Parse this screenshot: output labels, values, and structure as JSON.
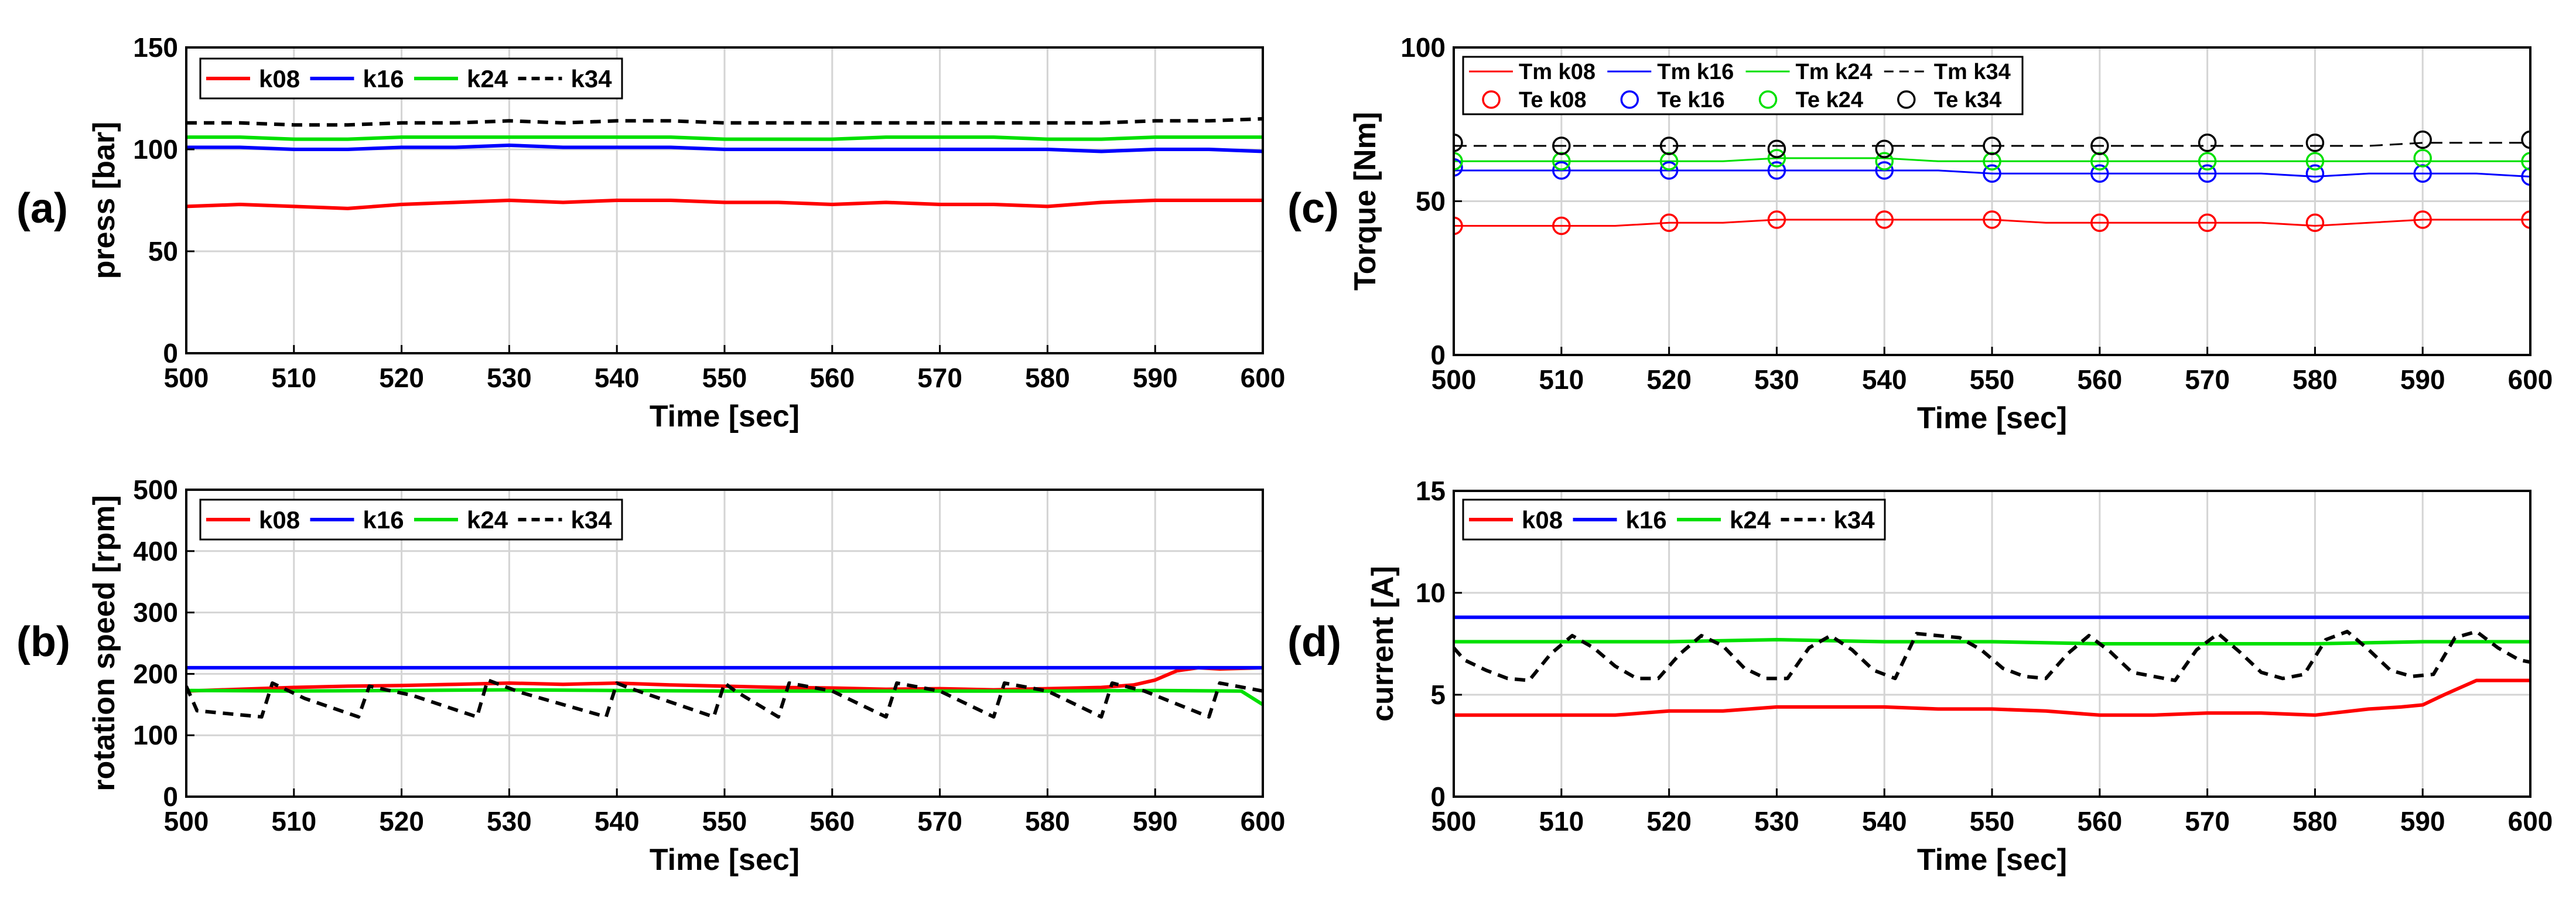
{
  "chart_data": [
    {
      "type": "line",
      "panel_label": "(a)",
      "xlabel": "Time [sec]",
      "ylabel": "press [bar]",
      "xlim": [
        500,
        600
      ],
      "ylim": [
        0,
        150
      ],
      "xticks": [
        "500",
        "510",
        "520",
        "530",
        "540",
        "550",
        "560",
        "570",
        "580",
        "590",
        "600"
      ],
      "yticks": [
        "0",
        "50",
        "100",
        "150"
      ],
      "grid": true,
      "legend_location": "top-left",
      "x": [
        500,
        505,
        510,
        515,
        520,
        525,
        530,
        535,
        540,
        545,
        550,
        555,
        560,
        565,
        570,
        575,
        580,
        585,
        590,
        595,
        600
      ],
      "series": [
        {
          "name": "k08",
          "color": "#ff0000",
          "style": "solid",
          "values": [
            72,
            73,
            72,
            71,
            73,
            74,
            75,
            74,
            75,
            75,
            74,
            74,
            73,
            74,
            73,
            73,
            72,
            74,
            75,
            75,
            75
          ]
        },
        {
          "name": "k16",
          "color": "#0000ff",
          "style": "solid",
          "values": [
            101,
            101,
            100,
            100,
            101,
            101,
            102,
            101,
            101,
            101,
            100,
            100,
            100,
            100,
            100,
            100,
            100,
            99,
            100,
            100,
            99
          ]
        },
        {
          "name": "k24",
          "color": "#00e000",
          "style": "solid",
          "values": [
            106,
            106,
            105,
            105,
            106,
            106,
            106,
            106,
            106,
            106,
            105,
            105,
            105,
            106,
            106,
            106,
            105,
            105,
            106,
            106,
            106
          ]
        },
        {
          "name": "k34",
          "color": "#000000",
          "style": "dashed",
          "values": [
            113,
            113,
            112,
            112,
            113,
            113,
            114,
            113,
            114,
            114,
            113,
            113,
            113,
            113,
            113,
            113,
            113,
            113,
            114,
            114,
            115
          ]
        }
      ]
    },
    {
      "type": "line",
      "panel_label": "(b)",
      "xlabel": "Time [sec]",
      "ylabel": "rotation speed [rpm]",
      "xlim": [
        500,
        600
      ],
      "ylim": [
        0,
        500
      ],
      "xticks": [
        "500",
        "510",
        "520",
        "530",
        "540",
        "550",
        "560",
        "570",
        "580",
        "590",
        "600"
      ],
      "yticks": [
        "0",
        "100",
        "200",
        "300",
        "400",
        "500"
      ],
      "grid": true,
      "legend_location": "top-left",
      "series": [
        {
          "name": "k08",
          "color": "#ff0000",
          "style": "solid",
          "x": [
            500,
            505,
            510,
            515,
            520,
            525,
            530,
            535,
            540,
            545,
            550,
            555,
            560,
            565,
            570,
            575,
            580,
            585,
            588,
            590,
            592,
            594,
            596,
            600
          ],
          "values": [
            172,
            175,
            178,
            180,
            181,
            183,
            185,
            183,
            185,
            182,
            180,
            178,
            177,
            175,
            176,
            174,
            176,
            178,
            182,
            190,
            205,
            210,
            208,
            210
          ]
        },
        {
          "name": "k16",
          "color": "#0000ff",
          "style": "solid",
          "x": [
            500,
            600
          ],
          "values": [
            210,
            210
          ]
        },
        {
          "name": "k24",
          "color": "#00e000",
          "style": "solid",
          "x": [
            500,
            510,
            520,
            530,
            540,
            550,
            560,
            570,
            580,
            590,
            598,
            600
          ],
          "values": [
            173,
            172,
            173,
            174,
            173,
            172,
            172,
            172,
            172,
            173,
            172,
            150
          ]
        },
        {
          "name": "k34",
          "color": "#000000",
          "style": "dashed",
          "x": [
            500,
            501,
            507,
            508,
            511,
            516,
            517,
            521,
            527,
            528,
            531,
            539,
            540,
            541,
            549,
            550,
            551,
            555,
            556,
            560,
            565,
            566,
            570,
            575,
            576,
            580,
            585,
            586,
            589,
            595,
            596,
            600
          ],
          "values": [
            180,
            140,
            130,
            185,
            160,
            130,
            180,
            165,
            130,
            190,
            170,
            130,
            185,
            178,
            130,
            185,
            172,
            130,
            185,
            172,
            130,
            185,
            172,
            130,
            185,
            172,
            130,
            185,
            172,
            130,
            185,
            172
          ]
        }
      ]
    },
    {
      "type": "line",
      "panel_label": "(c)",
      "xlabel": "Time [sec]",
      "ylabel": "Torque [Nm]",
      "xlim": [
        500,
        600
      ],
      "ylim": [
        0,
        100
      ],
      "xticks": [
        "500",
        "510",
        "520",
        "530",
        "540",
        "550",
        "560",
        "570",
        "580",
        "590",
        "600"
      ],
      "yticks": [
        "0",
        "50",
        "100"
      ],
      "grid": true,
      "legend_location": "top-left",
      "x": [
        500,
        505,
        510,
        515,
        520,
        525,
        530,
        535,
        540,
        545,
        550,
        555,
        560,
        565,
        570,
        575,
        580,
        585,
        590,
        595,
        600
      ],
      "series": [
        {
          "name": "Tm k08",
          "color": "#ff0000",
          "style": "solid",
          "values": [
            42,
            42,
            42,
            42,
            43,
            43,
            44,
            44,
            44,
            44,
            44,
            43,
            43,
            43,
            43,
            43,
            42,
            43,
            44,
            44,
            44
          ]
        },
        {
          "name": "Tm k16",
          "color": "#0000ff",
          "style": "solid",
          "values": [
            60,
            60,
            60,
            60,
            60,
            60,
            60,
            60,
            60,
            60,
            59,
            59,
            59,
            59,
            59,
            59,
            58,
            59,
            59,
            59,
            58
          ]
        },
        {
          "name": "Tm k24",
          "color": "#00e000",
          "style": "solid",
          "values": [
            63,
            63,
            63,
            63,
            63,
            63,
            64,
            64,
            64,
            63,
            63,
            63,
            63,
            63,
            63,
            63,
            63,
            63,
            63,
            63,
            63
          ]
        },
        {
          "name": "Tm k34",
          "color": "#000000",
          "style": "dashed",
          "values": [
            68,
            68,
            68,
            68,
            68,
            68,
            68,
            68,
            68,
            68,
            68,
            68,
            68,
            68,
            68,
            68,
            68,
            68,
            69,
            69,
            69
          ]
        },
        {
          "name": "Te k08",
          "color": "#ff0000",
          "marker": "circle",
          "x": [
            500,
            510,
            520,
            530,
            540,
            550,
            560,
            570,
            580,
            590,
            600
          ],
          "values": [
            42,
            42,
            43,
            44,
            44,
            44,
            43,
            43,
            43,
            44,
            44
          ]
        },
        {
          "name": "Te k16",
          "color": "#0000ff",
          "marker": "circle",
          "x": [
            500,
            510,
            520,
            530,
            540,
            550,
            560,
            570,
            580,
            590,
            600
          ],
          "values": [
            61,
            60,
            60,
            60,
            60,
            59,
            59,
            59,
            59,
            59,
            58
          ]
        },
        {
          "name": "Te k24",
          "color": "#00e000",
          "marker": "circle",
          "x": [
            500,
            510,
            520,
            530,
            540,
            550,
            560,
            570,
            580,
            590,
            600
          ],
          "values": [
            63,
            63,
            63,
            64,
            63,
            63,
            63,
            63,
            63,
            64,
            63
          ]
        },
        {
          "name": "Te k34",
          "color": "#000000",
          "marker": "circle",
          "x": [
            500,
            510,
            520,
            530,
            540,
            550,
            560,
            570,
            580,
            590,
            600
          ],
          "values": [
            69,
            68,
            68,
            67,
            67,
            68,
            68,
            69,
            69,
            70,
            70
          ]
        }
      ]
    },
    {
      "type": "line",
      "panel_label": "(d)",
      "xlabel": "Time [sec]",
      "ylabel": "current [A]",
      "xlim": [
        500,
        600
      ],
      "ylim": [
        0,
        15
      ],
      "xticks": [
        "500",
        "510",
        "520",
        "530",
        "540",
        "550",
        "560",
        "570",
        "580",
        "590",
        "600"
      ],
      "yticks": [
        "0",
        "5",
        "10",
        "15"
      ],
      "grid": true,
      "legend_location": "top-left",
      "series": [
        {
          "name": "k08",
          "color": "#ff0000",
          "style": "solid",
          "x": [
            500,
            505,
            510,
            515,
            520,
            525,
            530,
            535,
            540,
            545,
            550,
            555,
            560,
            565,
            570,
            575,
            580,
            585,
            588,
            590,
            592,
            595,
            600
          ],
          "values": [
            4.0,
            4.0,
            4.0,
            4.0,
            4.2,
            4.2,
            4.4,
            4.4,
            4.4,
            4.3,
            4.3,
            4.2,
            4.0,
            4.0,
            4.1,
            4.1,
            4.0,
            4.3,
            4.4,
            4.5,
            5.0,
            5.7,
            5.7
          ]
        },
        {
          "name": "k16",
          "color": "#0000ff",
          "style": "solid",
          "x": [
            500,
            600
          ],
          "values": [
            8.8,
            8.8
          ]
        },
        {
          "name": "k24",
          "color": "#00e000",
          "style": "solid",
          "x": [
            500,
            510,
            520,
            530,
            540,
            550,
            560,
            570,
            580,
            590,
            600
          ],
          "values": [
            7.6,
            7.6,
            7.6,
            7.7,
            7.6,
            7.6,
            7.5,
            7.5,
            7.5,
            7.6,
            7.6
          ]
        },
        {
          "name": "k34",
          "color": "#000000",
          "style": "dashed",
          "x": [
            500,
            501,
            503,
            505,
            507,
            509,
            511,
            513,
            515,
            517,
            519,
            521,
            523,
            525,
            527,
            529,
            531,
            533,
            535,
            537,
            539,
            541,
            543,
            545,
            547,
            549,
            551,
            553,
            555,
            557,
            559,
            561,
            563,
            565,
            567,
            569,
            571,
            573,
            575,
            577,
            579,
            581,
            583,
            585,
            587,
            589,
            591,
            593,
            595,
            597,
            599,
            600
          ],
          "values": [
            7.3,
            6.7,
            6.2,
            5.8,
            5.7,
            7.0,
            7.9,
            7.3,
            6.4,
            5.8,
            5.8,
            7.0,
            7.9,
            7.4,
            6.3,
            5.8,
            5.8,
            7.3,
            7.9,
            7.2,
            6.2,
            5.8,
            8.0,
            7.9,
            7.8,
            7.2,
            6.3,
            5.9,
            5.8,
            7.0,
            7.9,
            7.1,
            6.1,
            5.9,
            5.7,
            7.2,
            8.0,
            7.1,
            6.1,
            5.8,
            6.0,
            7.7,
            8.1,
            7.2,
            6.2,
            5.9,
            6.0,
            7.8,
            8.1,
            7.3,
            6.7,
            6.6
          ]
        }
      ]
    }
  ]
}
